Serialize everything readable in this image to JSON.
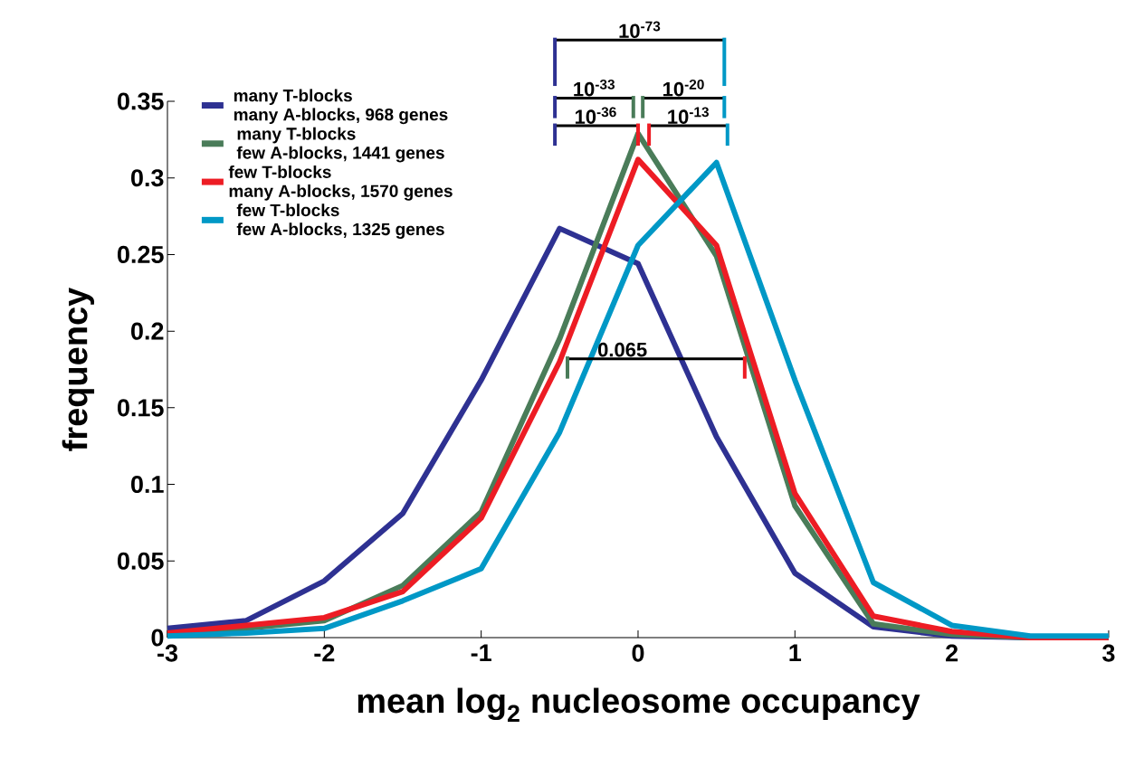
{
  "chart_data": {
    "type": "line",
    "xlabel": "mean log$_{2}$ nucleosome occupancy",
    "ylabel": "frequency",
    "x": [
      -3,
      -2.5,
      -2,
      -1.5,
      -1,
      -0.5,
      0,
      0.5,
      1,
      1.5,
      2,
      2.5,
      3
    ],
    "series": [
      {
        "name": "many T-blocks\nmany A-blocks, 968 genes",
        "color": "#2e3192",
        "values": [
          0.006,
          0.011,
          0.037,
          0.081,
          0.168,
          0.267,
          0.244,
          0.131,
          0.042,
          0.007,
          0.001,
          0,
          0
        ]
      },
      {
        "name": "many T-blocks\nfew A-blocks, 1441 genes",
        "color": "#4a7c59",
        "values": [
          0.002,
          0.006,
          0.011,
          0.034,
          0.082,
          0.195,
          0.329,
          0.249,
          0.086,
          0.009,
          0.002,
          0,
          0
        ]
      },
      {
        "name": "few T-blocks\nmany A-blocks, 1570 genes",
        "color": "#ed1c24",
        "values": [
          0.003,
          0.008,
          0.013,
          0.03,
          0.078,
          0.18,
          0.312,
          0.256,
          0.094,
          0.014,
          0.004,
          0,
          0
        ]
      },
      {
        "name": "few T-blocks\nfew A-blocks, 1325 genes",
        "color": "#0098c6",
        "values": [
          0.001,
          0.003,
          0.006,
          0.024,
          0.045,
          0.134,
          0.256,
          0.31,
          0.168,
          0.036,
          0.008,
          0.001,
          0.001
        ]
      }
    ],
    "xlim": [
      -3,
      3
    ],
    "ylim": [
      0,
      0.35
    ],
    "xticks": [
      -3,
      -2,
      -1,
      0,
      1,
      2,
      3
    ],
    "yticks": [
      0,
      0.05,
      0.1,
      0.15,
      0.2,
      0.25,
      0.3,
      0.35
    ],
    "annotations": [
      "10$^{-73}$",
      "10$^{-33}$",
      "10$^{-20}$",
      "10$^{-36}$",
      "10$^{-13}$",
      "0.065"
    ],
    "legend": "top left",
    "grid": false,
    "marker": "none",
    "line_style": "solid"
  }
}
